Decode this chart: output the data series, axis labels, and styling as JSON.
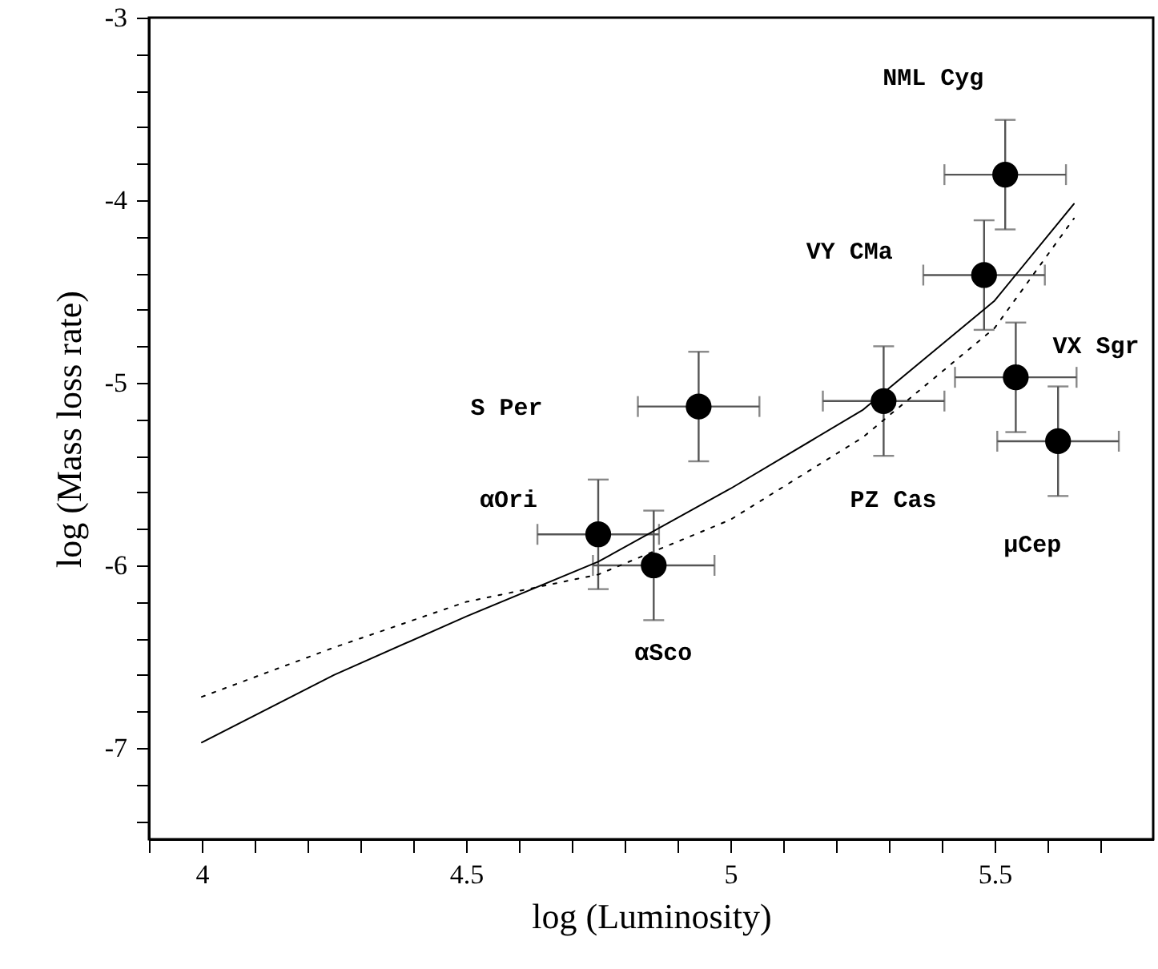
{
  "chart_data": {
    "type": "scatter",
    "xlabel": "log (Luminosity)",
    "ylabel": "log (Mass loss rate)",
    "xlim": [
      3.9,
      5.8
    ],
    "ylim": [
      -7.5,
      -3
    ],
    "xticks": [
      {
        "value": 3.9,
        "label": null
      },
      4,
      {
        "value": 4.1,
        "label": null
      },
      {
        "value": 4.2,
        "label": null
      },
      {
        "value": 4.3,
        "label": null
      },
      {
        "value": 4.4,
        "label": null
      },
      4.5,
      {
        "value": 4.6,
        "label": null
      },
      {
        "value": 4.7,
        "label": null
      },
      {
        "value": 4.8,
        "label": null
      },
      {
        "value": 4.9,
        "label": null
      },
      5,
      {
        "value": 5.1,
        "label": null
      },
      {
        "value": 5.2,
        "label": null
      },
      {
        "value": 5.3,
        "label": null
      },
      {
        "value": 5.4,
        "label": null
      },
      5.5,
      {
        "value": 5.6,
        "label": null
      },
      {
        "value": 5.7,
        "label": null
      }
    ],
    "yticks": [
      -3,
      {
        "value": -3.2,
        "label": null
      },
      {
        "value": -3.4,
        "label": null
      },
      {
        "value": -3.6,
        "label": null
      },
      {
        "value": -3.8,
        "label": null
      },
      -4,
      {
        "value": -4.2,
        "label": null
      },
      {
        "value": -4.4,
        "label": null
      },
      {
        "value": -4.6,
        "label": null
      },
      {
        "value": -4.8,
        "label": null
      },
      -5,
      {
        "value": -5.2,
        "label": null
      },
      {
        "value": -5.4,
        "label": null
      },
      {
        "value": -5.6,
        "label": null
      },
      {
        "value": -5.8,
        "label": null
      },
      -6,
      {
        "value": -6.2,
        "label": null
      },
      {
        "value": -6.4,
        "label": null
      },
      {
        "value": -6.6,
        "label": null
      },
      {
        "value": -6.8,
        "label": null
      },
      -7,
      {
        "value": -7.2,
        "label": null
      },
      {
        "value": -7.4,
        "label": null
      }
    ],
    "grid": false,
    "series": [
      {
        "color": "#000000",
        "marker": "circle",
        "x": [
          4.75,
          4.855,
          4.94,
          5.29,
          5.48,
          5.52,
          5.54,
          5.62
        ],
        "values": [
          -5.83,
          -6.0,
          -5.13,
          -5.1,
          -4.41,
          -3.86,
          -4.97,
          -5.32
        ],
        "errors": [
          0.3,
          0.3,
          0.3,
          0.3,
          0.3,
          0.3,
          0.3,
          0.3
        ],
        "xerrors": [
          0.115,
          0.115,
          0.115,
          0.115,
          0.115,
          0.115,
          0.115,
          0.115
        ]
      },
      {
        "type": "line",
        "color": "#000000",
        "line_style": "solid",
        "x": [
          4,
          4.25,
          4.5,
          4.75,
          5.0,
          5.25,
          5.5,
          5.65
        ],
        "values": [
          -6.97,
          -6.6,
          -6.28,
          -5.98,
          -5.58,
          -5.15,
          -4.55,
          -4.02
        ]
      },
      {
        "type": "line",
        "color": "#000000",
        "line_style": "dotted",
        "x": [
          4,
          4.25,
          4.5,
          4.75,
          5.0,
          5.25,
          5.5,
          5.65
        ],
        "values": [
          -6.72,
          -6.45,
          -6.2,
          -6.05,
          -5.75,
          -5.3,
          -4.7,
          -4.1
        ]
      }
    ],
    "annotations": [
      "αOri",
      "αSco",
      "S Per",
      "PZ Cas",
      "VY CMa",
      "NML Cyg",
      "VX Sgr",
      "μCep"
    ]
  }
}
